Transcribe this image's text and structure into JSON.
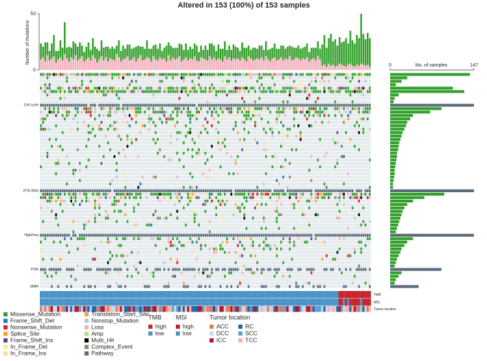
{
  "chart_data": {
    "type": "oncoprint",
    "title": "Altered in 153 (100%) of 153 samples",
    "ylabel": "Number of mutations",
    "ylim": [
      0,
      53
    ],
    "yticks": [
      0,
      53
    ],
    "series": [
      {
        "name": "Loss",
        "color": "#f4b0bd",
        "values": [
          10,
          12,
          8,
          14,
          9,
          11,
          13,
          7,
          10,
          12,
          9,
          15,
          11,
          8,
          12,
          10,
          14,
          9,
          11,
          13,
          8,
          10,
          12,
          9,
          14,
          11,
          7,
          10,
          13,
          9,
          12,
          8,
          11,
          10,
          9,
          15,
          12,
          8,
          10,
          11,
          13,
          9,
          10,
          12,
          8,
          11,
          14,
          9,
          10,
          12,
          11,
          8,
          13,
          10,
          9,
          12,
          10,
          11,
          8,
          14,
          9,
          12,
          10,
          11,
          13,
          8,
          10,
          12,
          9,
          11,
          10,
          13,
          9,
          8,
          12,
          11,
          10,
          9,
          13,
          10,
          12,
          9,
          11,
          10,
          8,
          13,
          10,
          12,
          9,
          11,
          10,
          11,
          9,
          12,
          10,
          8,
          13,
          11,
          9,
          10,
          11,
          10,
          12,
          9,
          13,
          10,
          8,
          11,
          12,
          9,
          10,
          12,
          9,
          11,
          10,
          13,
          9,
          10,
          12,
          11,
          9,
          11,
          10,
          12,
          8,
          10,
          11,
          9,
          13,
          10,
          4,
          5,
          3,
          6,
          4,
          5,
          3,
          4,
          6,
          5,
          4,
          3,
          5,
          6,
          4,
          3,
          5,
          4,
          6,
          5,
          4,
          5,
          3
        ]
      },
      {
        "name": "Missense_Mutation",
        "color": "#33a02c",
        "values": [
          15,
          10,
          18,
          12,
          9,
          14,
          20,
          11,
          8,
          16,
          12,
          30,
          10,
          14,
          9,
          17,
          11,
          13,
          15,
          10,
          9,
          12,
          14,
          10,
          16,
          11,
          13,
          8,
          15,
          12,
          10,
          14,
          9,
          12,
          11,
          8,
          16,
          10,
          13,
          9,
          11,
          15,
          10,
          9,
          14,
          12,
          8,
          13,
          10,
          16,
          9,
          12,
          10,
          14,
          11,
          13,
          8,
          10,
          15,
          12,
          14,
          9,
          11,
          10,
          12,
          16,
          9,
          13,
          10,
          11,
          10,
          12,
          14,
          9,
          11,
          8,
          13,
          10,
          12,
          15,
          11,
          9,
          13,
          10,
          12,
          14,
          9,
          11,
          10,
          13,
          12,
          10,
          9,
          14,
          11,
          13,
          10,
          8,
          12,
          11,
          9,
          13,
          11,
          10,
          14,
          9,
          12,
          10,
          13,
          11,
          10,
          11,
          14,
          9,
          12,
          10,
          13,
          11,
          9,
          12,
          11,
          10,
          12,
          13,
          9,
          11,
          10,
          12,
          14,
          10,
          20,
          28,
          18,
          24,
          30,
          22,
          26,
          19,
          25,
          21,
          23,
          27,
          20,
          31,
          24,
          22,
          28,
          26,
          47,
          29,
          25,
          30,
          27
        ]
      }
    ],
    "samples_xlabel": "No. of samples",
    "xlim": [
      0,
      147
    ],
    "xticks": [
      0,
      147
    ],
    "rows": [
      {
        "label": null,
        "count": 140
      },
      {
        "label": null,
        "count": 30
      },
      {
        "label": null,
        "count": 20
      },
      {
        "label": null,
        "count": 10
      },
      {
        "label": null,
        "count": 110
      },
      {
        "label": null,
        "count": 130
      },
      {
        "label": null,
        "count": 15
      },
      {
        "label": null,
        "count": 8
      },
      {
        "label": null,
        "count": 6
      },
      {
        "label": "Cell cycle",
        "count": 147,
        "pathway": true
      },
      {
        "label": null,
        "count": 90
      },
      {
        "label": null,
        "count": 70
      },
      {
        "label": null,
        "count": 40
      },
      {
        "label": null,
        "count": 35
      },
      {
        "label": null,
        "count": 30
      },
      {
        "label": null,
        "count": 28
      },
      {
        "label": null,
        "count": 25
      },
      {
        "label": null,
        "count": 22
      },
      {
        "label": null,
        "count": 20
      },
      {
        "label": null,
        "count": 18
      },
      {
        "label": null,
        "count": 16
      },
      {
        "label": null,
        "count": 15
      },
      {
        "label": null,
        "count": 14
      },
      {
        "label": null,
        "count": 12
      },
      {
        "label": null,
        "count": 12
      },
      {
        "label": null,
        "count": 11
      },
      {
        "label": null,
        "count": 10
      },
      {
        "label": null,
        "count": 9
      },
      {
        "label": null,
        "count": 8
      },
      {
        "label": null,
        "count": 8
      },
      {
        "label": null,
        "count": 7
      },
      {
        "label": null,
        "count": 6
      },
      {
        "label": null,
        "count": 5
      },
      {
        "label": null,
        "count": 5
      },
      {
        "label": "RTK-RAS",
        "count": 147,
        "pathway": true
      },
      {
        "label": null,
        "count": 95
      },
      {
        "label": null,
        "count": 60
      },
      {
        "label": null,
        "count": 40
      },
      {
        "label": null,
        "count": 30
      },
      {
        "label": null,
        "count": 25
      },
      {
        "label": null,
        "count": 22
      },
      {
        "label": null,
        "count": 20
      },
      {
        "label": null,
        "count": 18
      },
      {
        "label": null,
        "count": 16
      },
      {
        "label": null,
        "count": 14
      },
      {
        "label": null,
        "count": 12
      },
      {
        "label": null,
        "count": 10
      },
      {
        "label": "HighFreq",
        "count": 147,
        "pathway": true
      },
      {
        "label": null,
        "count": 40
      },
      {
        "label": null,
        "count": 30
      },
      {
        "label": null,
        "count": 25
      },
      {
        "label": null,
        "count": 20
      },
      {
        "label": null,
        "count": 18
      },
      {
        "label": null,
        "count": 15
      },
      {
        "label": null,
        "count": 12
      },
      {
        "label": null,
        "count": 10
      },
      {
        "label": null,
        "count": 8
      },
      {
        "label": "PI3K",
        "count": 90,
        "pathway": true
      },
      {
        "label": null,
        "count": 20
      },
      {
        "label": null,
        "count": 15
      },
      {
        "label": null,
        "count": 10
      },
      {
        "label": null,
        "count": 8
      },
      {
        "label": "MMR",
        "count": 50,
        "pathway": true
      }
    ],
    "legend": [
      {
        "name": "Missense_Mutation",
        "color": "#33a02c"
      },
      {
        "name": "Frame_Shift_Del",
        "color": "#1f78b4"
      },
      {
        "name": "Nonsense_Mutation",
        "color": "#e31a1c"
      },
      {
        "name": "Splice_Site",
        "color": "#ff9f1c"
      },
      {
        "name": "Frame_Shift_Ins",
        "color": "#6a3d9a"
      },
      {
        "name": "In_Frame_Del",
        "color": "#f2f27a"
      },
      {
        "name": "In_Frame_Ins",
        "color": "#fdd89a"
      },
      {
        "name": "Translation_Start_Site",
        "color": "#f4a460"
      },
      {
        "name": "Nonstop_Mutation",
        "color": "#a6cee3"
      },
      {
        "name": "Loss",
        "color": "#f4b0bd"
      },
      {
        "name": "Amp",
        "color": "#b2df8a"
      },
      {
        "name": "Multi_Hit",
        "color": "#000000"
      },
      {
        "name": "Complex_Event",
        "color": "#8a8a5c"
      },
      {
        "name": "Pathway",
        "color": "#5b6c7c"
      }
    ],
    "annotations": [
      {
        "label": "TMB",
        "items": [
          {
            "name": "high",
            "color": "#c8242c"
          },
          {
            "name": "low",
            "color": "#4b94c8"
          }
        ]
      },
      {
        "label": "MSI",
        "items": [
          {
            "name": "high",
            "color": "#c8242c"
          },
          {
            "name": "low",
            "color": "#4b94c8"
          }
        ]
      },
      {
        "label": "Tumor location",
        "items": [
          {
            "name": "ACC",
            "color": "#ea7a5c"
          },
          {
            "name": "DCC",
            "color": "#c6dbef"
          },
          {
            "name": "ICC",
            "color": "#b2182b"
          },
          {
            "name": "RC",
            "color": "#2166ac"
          },
          {
            "name": "SCC",
            "color": "#5aa0d0"
          },
          {
            "name": "TCC",
            "color": "#fbb4a0"
          }
        ]
      }
    ]
  }
}
